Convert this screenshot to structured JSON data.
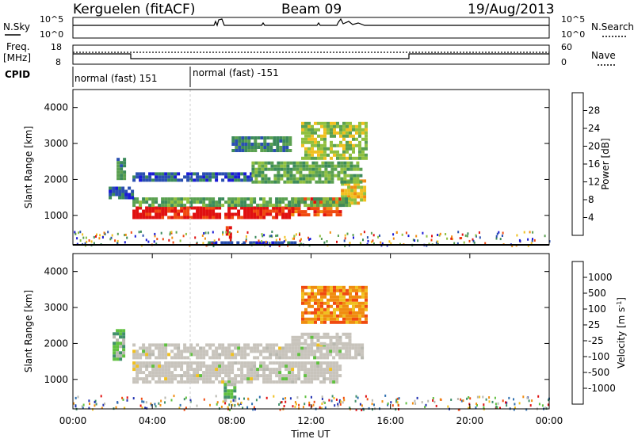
{
  "header": {
    "radar": "Kerguelen (fitACF)",
    "beam": "Beam 09",
    "date": "19/Aug/2013"
  },
  "strip_labels": {
    "nsky": "N.Sky",
    "nsky_ticks": [
      "10^5",
      "10^0"
    ],
    "nsearch": "N.Search",
    "nsearch_ticks": [
      "10^5",
      "10^0"
    ],
    "freq_line1": "Freq.",
    "freq_line2": "[MHz]",
    "freq_ticks": [
      "18",
      "8"
    ],
    "nave": "Nave",
    "nave_ticks": [
      "60",
      "0"
    ],
    "cpid": "CPID",
    "cpid_segments": [
      "normal (fast) 151",
      "normal (fast) -151"
    ]
  },
  "colors": {
    "power_scale": [
      "#1a1ad6",
      "#2a4fb0",
      "#3c8a5a",
      "#5aa050",
      "#90c040",
      "#f0c020",
      "#f08c10",
      "#f04a10",
      "#e01010"
    ],
    "velocity_scale": [
      "#2030b0",
      "#3070b0",
      "#40906a",
      "#60c040",
      "#b8b8b0",
      "#f0c020",
      "#f08c10",
      "#f04a10",
      "#e01010"
    ],
    "ground_scatter": "#c8c4bc"
  },
  "chart_data": [
    {
      "type": "heatmap",
      "name": "power",
      "ylabel": "Slant Range [km]",
      "yticks": [
        "1000",
        "2000",
        "3000",
        "4000"
      ],
      "ylim": [
        180,
        4500
      ],
      "xlim": [
        0,
        24
      ],
      "colorbar_label": "Power [dB]",
      "colorbar_ticks": [
        "4",
        "8",
        "12",
        "16",
        "20",
        "24",
        "28"
      ],
      "colorbar_range": [
        0,
        30
      ],
      "regions": [
        {
          "t0": 3.0,
          "t1": 11.0,
          "r0": 900,
          "r1": 1250,
          "level": 8
        },
        {
          "t0": 11.0,
          "t1": 13.5,
          "r0": 1000,
          "r1": 1500,
          "level": 7
        },
        {
          "t0": 13.5,
          "t1": 14.7,
          "r0": 1300,
          "r1": 2000,
          "level": 5
        },
        {
          "t0": 3.0,
          "t1": 14.0,
          "r0": 1300,
          "r1": 1500,
          "level": 3
        },
        {
          "t0": 1.8,
          "t1": 3.0,
          "r0": 1500,
          "r1": 1800,
          "level": 1
        },
        {
          "t0": 2.2,
          "t1": 2.6,
          "r0": 2000,
          "r1": 2600,
          "level": 2
        },
        {
          "t0": 3.0,
          "t1": 9.0,
          "r0": 2000,
          "r1": 2200,
          "level": 1
        },
        {
          "t0": 9.0,
          "t1": 14.5,
          "r0": 1900,
          "r1": 2500,
          "level": 3
        },
        {
          "t0": 11.5,
          "t1": 14.7,
          "r0": 2600,
          "r1": 3600,
          "level": 4
        },
        {
          "t0": 8.0,
          "t1": 11.0,
          "r0": 2800,
          "r1": 3200,
          "level": 2
        },
        {
          "t0": 7.7,
          "t1": 8.0,
          "r0": 400,
          "r1": 700,
          "level": 8
        },
        {
          "t0": 6.8,
          "t1": 11.2,
          "r0": 200,
          "r1": 280,
          "level": 1
        }
      ]
    },
    {
      "type": "heatmap",
      "name": "velocity",
      "ylabel": "Slant Range [km]",
      "yticks": [
        "1000",
        "2000",
        "3000",
        "4000"
      ],
      "ylim": [
        180,
        4500
      ],
      "xlim": [
        0,
        24
      ],
      "xlabel": "Time UT",
      "xticks": [
        "00:00",
        "04:00",
        "08:00",
        "12:00",
        "16:00",
        "20:00",
        "00:00"
      ],
      "colorbar_label": "Velocity [m s",
      "colorbar_label_sup": "-1",
      "colorbar_label_end": "]",
      "colorbar_ticks": [
        "1000",
        "500",
        "100",
        "25",
        "-25",
        "-100",
        "-500",
        "-1000"
      ],
      "regions": [
        {
          "t0": 3.0,
          "t1": 13.5,
          "r0": 900,
          "r1": 1500,
          "level": 4
        },
        {
          "t0": 3.0,
          "t1": 14.6,
          "r0": 1600,
          "r1": 2000,
          "level": 4
        },
        {
          "t0": 11.0,
          "t1": 14.0,
          "r0": 2000,
          "r1": 2300,
          "level": 4
        },
        {
          "t0": 11.5,
          "t1": 14.7,
          "r0": 2600,
          "r1": 3600,
          "level": 6
        },
        {
          "t0": 2.0,
          "t1": 2.6,
          "r0": 1600,
          "r1": 2400,
          "level": 3
        },
        {
          "t0": 7.6,
          "t1": 8.1,
          "r0": 400,
          "r1": 900,
          "level": 3
        }
      ]
    }
  ]
}
